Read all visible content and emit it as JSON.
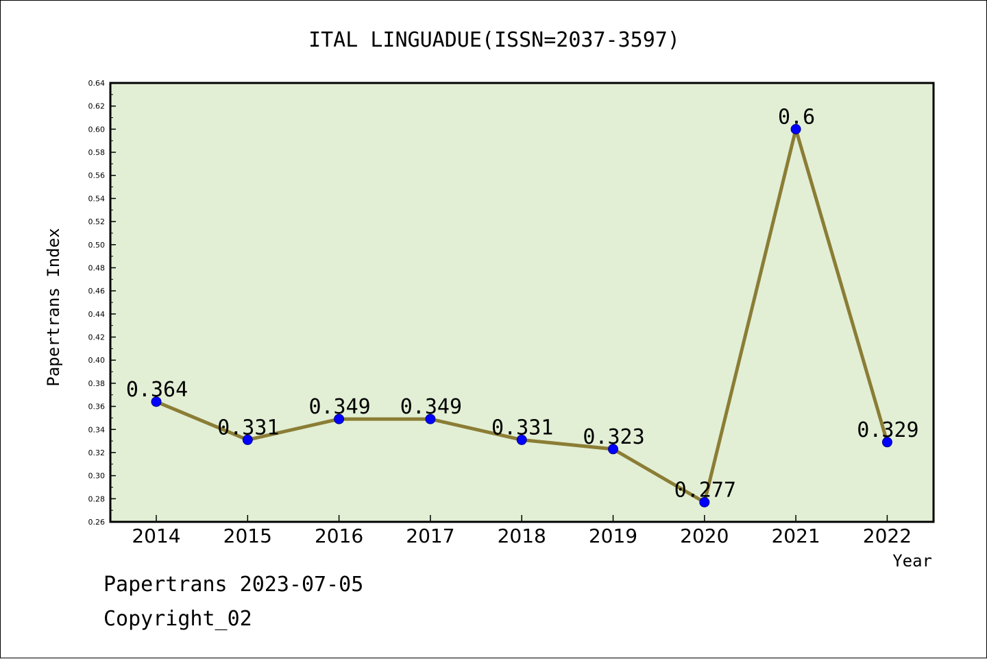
{
  "chart_data": {
    "type": "line",
    "title": "ITAL LINGUADUE(ISSN=2037-3597)",
    "xlabel": "Year",
    "ylabel": "Papertrans Index",
    "categories": [
      "2014",
      "2015",
      "2016",
      "2017",
      "2018",
      "2019",
      "2020",
      "2021",
      "2022"
    ],
    "values": [
      0.364,
      0.331,
      0.349,
      0.349,
      0.331,
      0.323,
      0.277,
      0.6,
      0.329
    ],
    "data_labels": [
      "0.364",
      "0.331",
      "0.349",
      "0.349",
      "0.331",
      "0.323",
      "0.277",
      "0.6",
      "0.329"
    ],
    "ylim": [
      0.26,
      0.64
    ],
    "yticks": [
      "0.26",
      "0.28",
      "0.30",
      "0.32",
      "0.34",
      "0.36",
      "0.38",
      "0.40",
      "0.42",
      "0.44",
      "0.46",
      "0.48",
      "0.50",
      "0.52",
      "0.54",
      "0.56",
      "0.58",
      "0.60",
      "0.62",
      "0.64"
    ],
    "grid": false,
    "colors": {
      "plot_background": "#e2efd5",
      "line": "#8b7d35",
      "marker": "#0000ff"
    }
  },
  "footer": {
    "date": "Papertrans 2023-07-05",
    "copyright": "Copyright_02"
  }
}
